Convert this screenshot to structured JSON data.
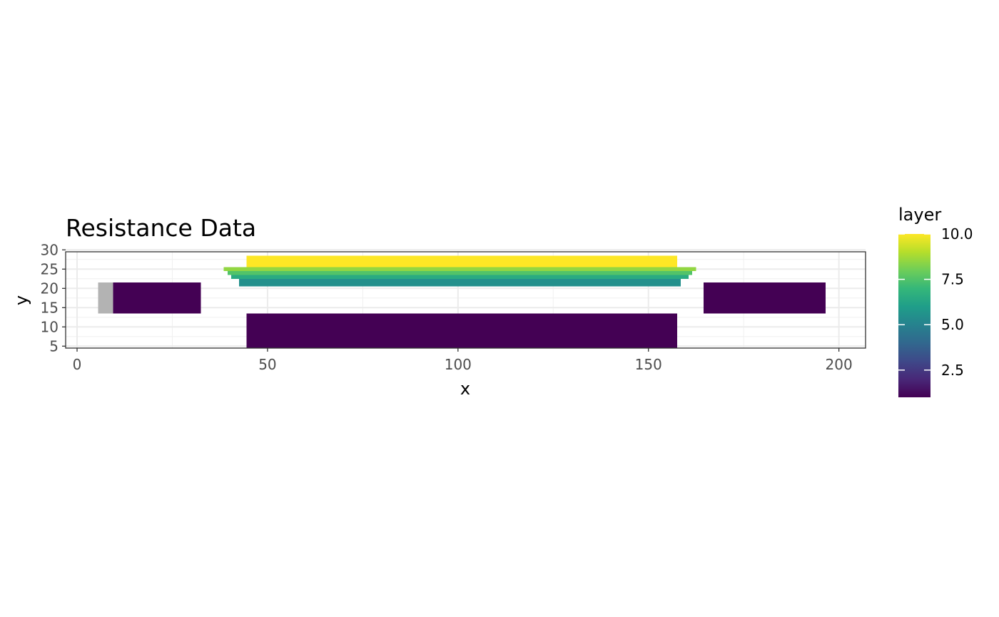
{
  "chart_data": {
    "type": "heatmap",
    "title": "Resistance Data",
    "xlabel": "x",
    "ylabel": "y",
    "xlim": [
      -3,
      207
    ],
    "ylim": [
      4.5,
      29.5
    ],
    "x_ticks": [
      0,
      50,
      100,
      150,
      200
    ],
    "y_ticks": [
      5,
      10,
      15,
      20,
      25,
      30
    ],
    "grid": true,
    "na_color": "#b3b3b3",
    "legend": {
      "title": "layer",
      "position": "right",
      "range": [
        1,
        10
      ],
      "breaks": [
        2.5,
        5.0,
        7.5,
        10.0
      ],
      "break_labels": [
        "2.5",
        "5.0",
        "7.5",
        "10.0"
      ],
      "colors": [
        "#440154",
        "#482878",
        "#3e4989",
        "#31688e",
        "#26828e",
        "#1f9e89",
        "#35b779",
        "#6ece58",
        "#b5de2b",
        "#fde725"
      ]
    },
    "regions": [
      {
        "name": "na-cells",
        "x": [
          6,
          9
        ],
        "y": [
          14,
          21
        ],
        "value": null
      },
      {
        "name": "left-channel",
        "x": [
          10,
          32
        ],
        "y": [
          14,
          21
        ],
        "value": 1
      },
      {
        "name": "right-channel",
        "x": [
          165,
          196
        ],
        "y": [
          14,
          21
        ],
        "value": 1
      },
      {
        "name": "lower-branch",
        "x": [
          45,
          157
        ],
        "y": [
          5,
          13
        ],
        "value": 1
      },
      {
        "name": "upper-branch-bottom-row",
        "x": [
          43,
          158
        ],
        "y": [
          21,
          22
        ],
        "value": 5.5
      },
      {
        "name": "upper-branch-row-2",
        "x": [
          41,
          160
        ],
        "y": [
          23,
          23
        ],
        "value": 6.5
      },
      {
        "name": "upper-branch-row-3",
        "x": [
          40,
          161
        ],
        "y": [
          24,
          24
        ],
        "value": 7.5
      },
      {
        "name": "upper-branch-row-4",
        "x": [
          39,
          162
        ],
        "y": [
          25,
          25
        ],
        "value": 8.5
      },
      {
        "name": "upper-branch-top",
        "x": [
          45,
          157
        ],
        "y": [
          26,
          28
        ],
        "value": 10
      }
    ]
  }
}
